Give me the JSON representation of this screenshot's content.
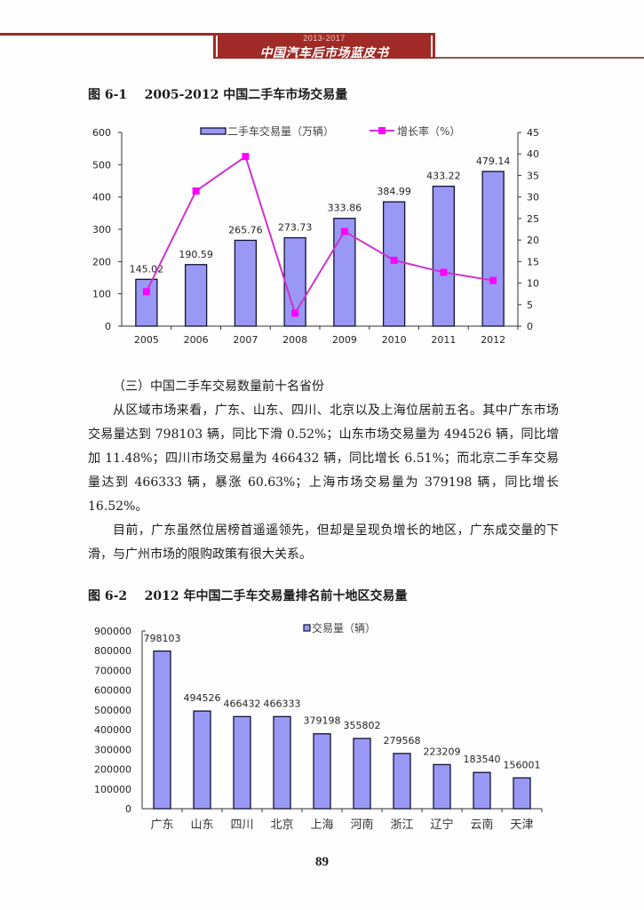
{
  "header": {
    "year_range": "2013-2017",
    "book_title": "中国汽车后市场蓝皮书"
  },
  "figure1": {
    "title": "图 6-1    2005-2012 中国二手车市场交易量"
  },
  "section": {
    "heading": "（三）中国二手车交易数量前十名省份",
    "paragraph1": "从区域市场来看，广东、山东、四川、北京以及上海位居前五名。其中广东市场交易量达到 798103 辆，同比下滑 0.52%；山东市场交易量为 494526 辆，同比增加 11.48%；四川市场交易量为 466432 辆，同比增长 6.51%；而北京二手车交易量达到 466333 辆，暴涨 60.63%；上海市场交易量为 379198 辆，同比增长 16.52%。",
    "paragraph2": "目前，广东虽然位居榜首遥遥领先，但却是呈现负增长的地区，广东成交量的下滑，与广州市场的限购政策有很大关系。"
  },
  "figure2": {
    "title": "图 6-2    2012 年中国二手车交易量排名前十地区交易量"
  },
  "page_number": "89",
  "colors": {
    "header_red": "#a02a25",
    "bar_fill": "#9999f5",
    "bar_stroke": "#111133",
    "line_magenta": "#cc33cc",
    "marker_magenta": "#ff00ff"
  },
  "chart_data": [
    {
      "type": "bar+line",
      "title": "2005-2012 中国二手车市场交易量",
      "categories": [
        "2005",
        "2006",
        "2007",
        "2008",
        "2009",
        "2010",
        "2011",
        "2012"
      ],
      "series": [
        {
          "name": "二手车交易量（万辆）",
          "type": "bar",
          "axis": "left",
          "values": [
            145.02,
            190.59,
            265.76,
            273.73,
            333.86,
            384.99,
            433.22,
            479.14
          ],
          "labels": [
            "145.02",
            "190.59",
            "265.76",
            "273.73",
            "333.86",
            "384.99",
            "433.22",
            "479.14"
          ]
        },
        {
          "name": "增长率（%）",
          "type": "line",
          "axis": "right",
          "values": [
            8,
            31.4,
            39.4,
            3.0,
            22.0,
            15.3,
            12.5,
            10.6
          ]
        }
      ],
      "left_axis": {
        "ylim": [
          0,
          600
        ],
        "ticks": [
          "0",
          "100",
          "200",
          "300",
          "400",
          "500",
          "600"
        ]
      },
      "right_axis": {
        "ylim": [
          0,
          45
        ],
        "ticks": [
          "0",
          "5",
          "10",
          "15",
          "20",
          "25",
          "30",
          "35",
          "40",
          "45"
        ]
      },
      "legend_position": "top",
      "grid": false
    },
    {
      "type": "bar",
      "title": "2012 年中国二手车交易量排名前十地区交易量",
      "categories": [
        "广东",
        "山东",
        "四川",
        "北京",
        "上海",
        "河南",
        "浙江",
        "辽宁",
        "云南",
        "天津"
      ],
      "series": [
        {
          "name": "交易量（辆）",
          "values": [
            798103,
            494526,
            466432,
            466333,
            379198,
            355802,
            279568,
            223209,
            183540,
            156001
          ],
          "labels": [
            "798103",
            "494526",
            "466432",
            "466333",
            "379198",
            "355802",
            "279568",
            "223209",
            "183540",
            "156001"
          ]
        }
      ],
      "y_axis": {
        "ylim": [
          0,
          900000
        ],
        "ticks": [
          "0",
          "100000",
          "200000",
          "300000",
          "400000",
          "500000",
          "600000",
          "700000",
          "800000",
          "900000"
        ]
      },
      "legend_position": "top-right",
      "grid": false
    }
  ]
}
